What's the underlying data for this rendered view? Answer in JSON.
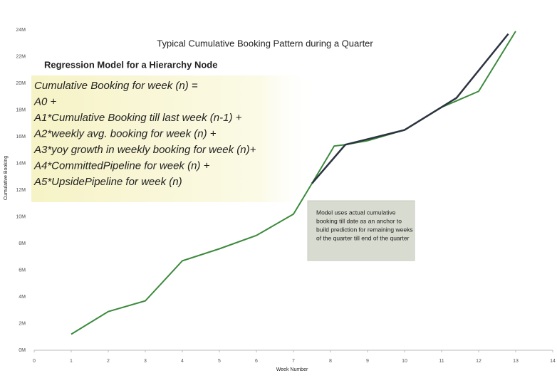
{
  "chart_data": {
    "type": "line",
    "title": "Typical Cumulative Booking Pattern during a Quarter",
    "xlabel": "Week Number",
    "ylabel": "Cumulative Booking",
    "xlim": [
      0,
      14
    ],
    "xticks": [
      0,
      1,
      2,
      3,
      4,
      5,
      6,
      7,
      8,
      9,
      10,
      11,
      12,
      13,
      14
    ],
    "ylim": [
      0,
      24
    ],
    "yticks": [
      {
        "value": 0,
        "label": "0M"
      },
      {
        "value": 2,
        "label": "2M"
      },
      {
        "value": 4,
        "label": "4M"
      },
      {
        "value": 6,
        "label": "6M"
      },
      {
        "value": 8,
        "label": "8M"
      },
      {
        "value": 10,
        "label": "10M"
      },
      {
        "value": 12,
        "label": "12M"
      },
      {
        "value": 14,
        "label": "14M"
      },
      {
        "value": 16,
        "label": "16M"
      },
      {
        "value": 18,
        "label": "18M"
      },
      {
        "value": 20,
        "label": "20M"
      },
      {
        "value": 22,
        "label": "22M"
      },
      {
        "value": 24,
        "label": "24M"
      }
    ],
    "series": [
      {
        "color": "#3c8a3c",
        "x": [
          1,
          2,
          3,
          4,
          5,
          6,
          7,
          7.5,
          8.1,
          8.4,
          9,
          10,
          11,
          12,
          13
        ],
        "values": [
          1.2,
          2.9,
          3.7,
          6.7,
          7.6,
          8.6,
          10.2,
          12.5,
          15.3,
          15.4,
          15.7,
          16.5,
          18.2,
          19.4,
          23.9
        ]
      },
      {
        "color": "#2b3340",
        "x": [
          7.5,
          8.4,
          10,
          11.4,
          12.8
        ],
        "values": [
          12.5,
          15.4,
          16.5,
          18.9,
          23.7
        ]
      }
    ],
    "regression_box": {
      "title": "Regression Model for a Hierarchy Node",
      "lines": [
        "Cumulative Booking for week (n) =",
        "A0 +",
        "A1*Cumulative Booking till last week (n-1) +",
        "A2*weekly avg. booking for week (n) +",
        "A3*yoy growth in weekly booking for week (n)+",
        "A4*CommittedPipeline for week (n) +",
        "A5*UpsidePipeline for week (n)"
      ]
    },
    "callout": [
      "Model uses actual cumulative",
      "booking till date as an anchor to",
      "build prediction for remaining weeks",
      "of the quarter till end of the quarter"
    ]
  }
}
